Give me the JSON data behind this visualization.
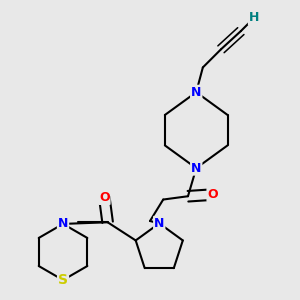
{
  "background_color": "#e8e8e8",
  "atom_colors": {
    "C": "#000000",
    "N": "#0000ff",
    "O": "#ff0000",
    "S": "#cccc00",
    "H": "#008080"
  },
  "bond_lw": 1.5,
  "figsize": [
    3.0,
    3.0
  ],
  "dpi": 100
}
